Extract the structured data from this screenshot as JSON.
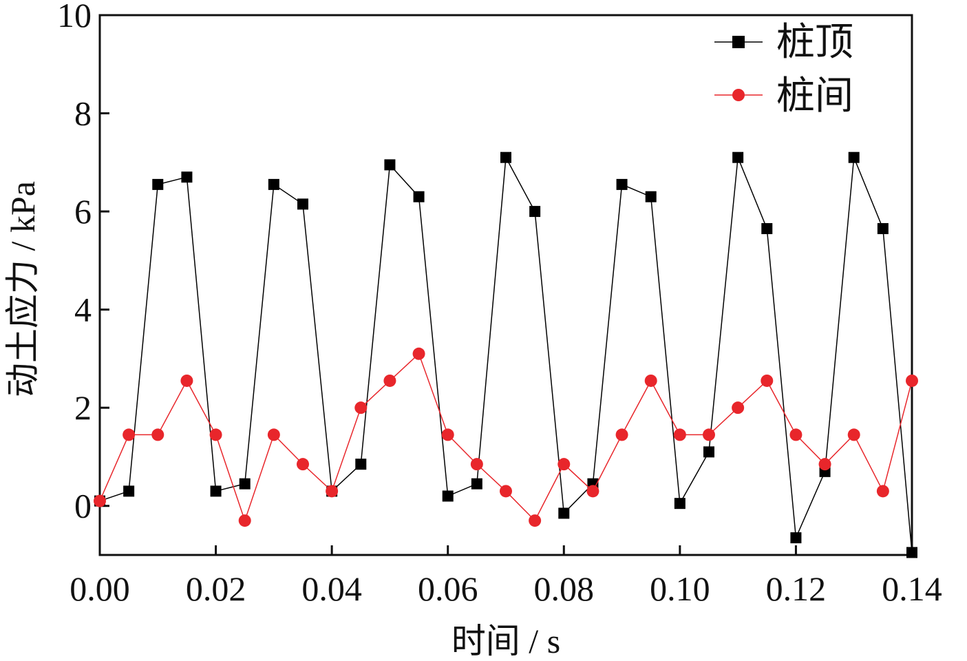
{
  "chart_data": {
    "type": "line",
    "title": "",
    "xlabel": "时间 / s",
    "ylabel": "动土应力 / kPa",
    "xlim": [
      0.0,
      0.14
    ],
    "ylim": [
      -1,
      10
    ],
    "x_ticks": [
      "0.00",
      "0.02",
      "0.04",
      "0.06",
      "0.08",
      "0.10",
      "0.12",
      "0.14"
    ],
    "y_ticks": [
      "0",
      "2",
      "4",
      "6",
      "8",
      "10"
    ],
    "grid": false,
    "legend_position": "top-right",
    "x": [
      0.0,
      0.005,
      0.01,
      0.015,
      0.02,
      0.025,
      0.03,
      0.035,
      0.04,
      0.045,
      0.05,
      0.055,
      0.06,
      0.065,
      0.07,
      0.075,
      0.08,
      0.085,
      0.09,
      0.095,
      0.1,
      0.105,
      0.11,
      0.115,
      0.12,
      0.125,
      0.13,
      0.135,
      0.14
    ],
    "series": [
      {
        "name": "桩顶",
        "color": "#000000",
        "marker": "square",
        "values": [
          0.1,
          0.3,
          6.55,
          6.7,
          0.3,
          0.45,
          6.55,
          6.15,
          0.3,
          0.85,
          6.95,
          6.3,
          0.2,
          0.45,
          7.1,
          6.0,
          -0.15,
          0.45,
          6.55,
          6.3,
          0.05,
          1.1,
          7.1,
          5.65,
          -0.65,
          0.7,
          7.1,
          5.65,
          -0.95
        ]
      },
      {
        "name": "桩间",
        "color": "#e8262b",
        "marker": "circle",
        "values": [
          0.1,
          1.45,
          1.45,
          2.55,
          1.45,
          -0.3,
          1.45,
          0.85,
          0.3,
          2.0,
          2.55,
          3.1,
          1.45,
          0.85,
          0.3,
          -0.3,
          0.85,
          0.3,
          1.45,
          2.55,
          1.45,
          1.45,
          2.0,
          2.55,
          1.45,
          0.85,
          1.45,
          0.3,
          2.55
        ]
      }
    ]
  }
}
